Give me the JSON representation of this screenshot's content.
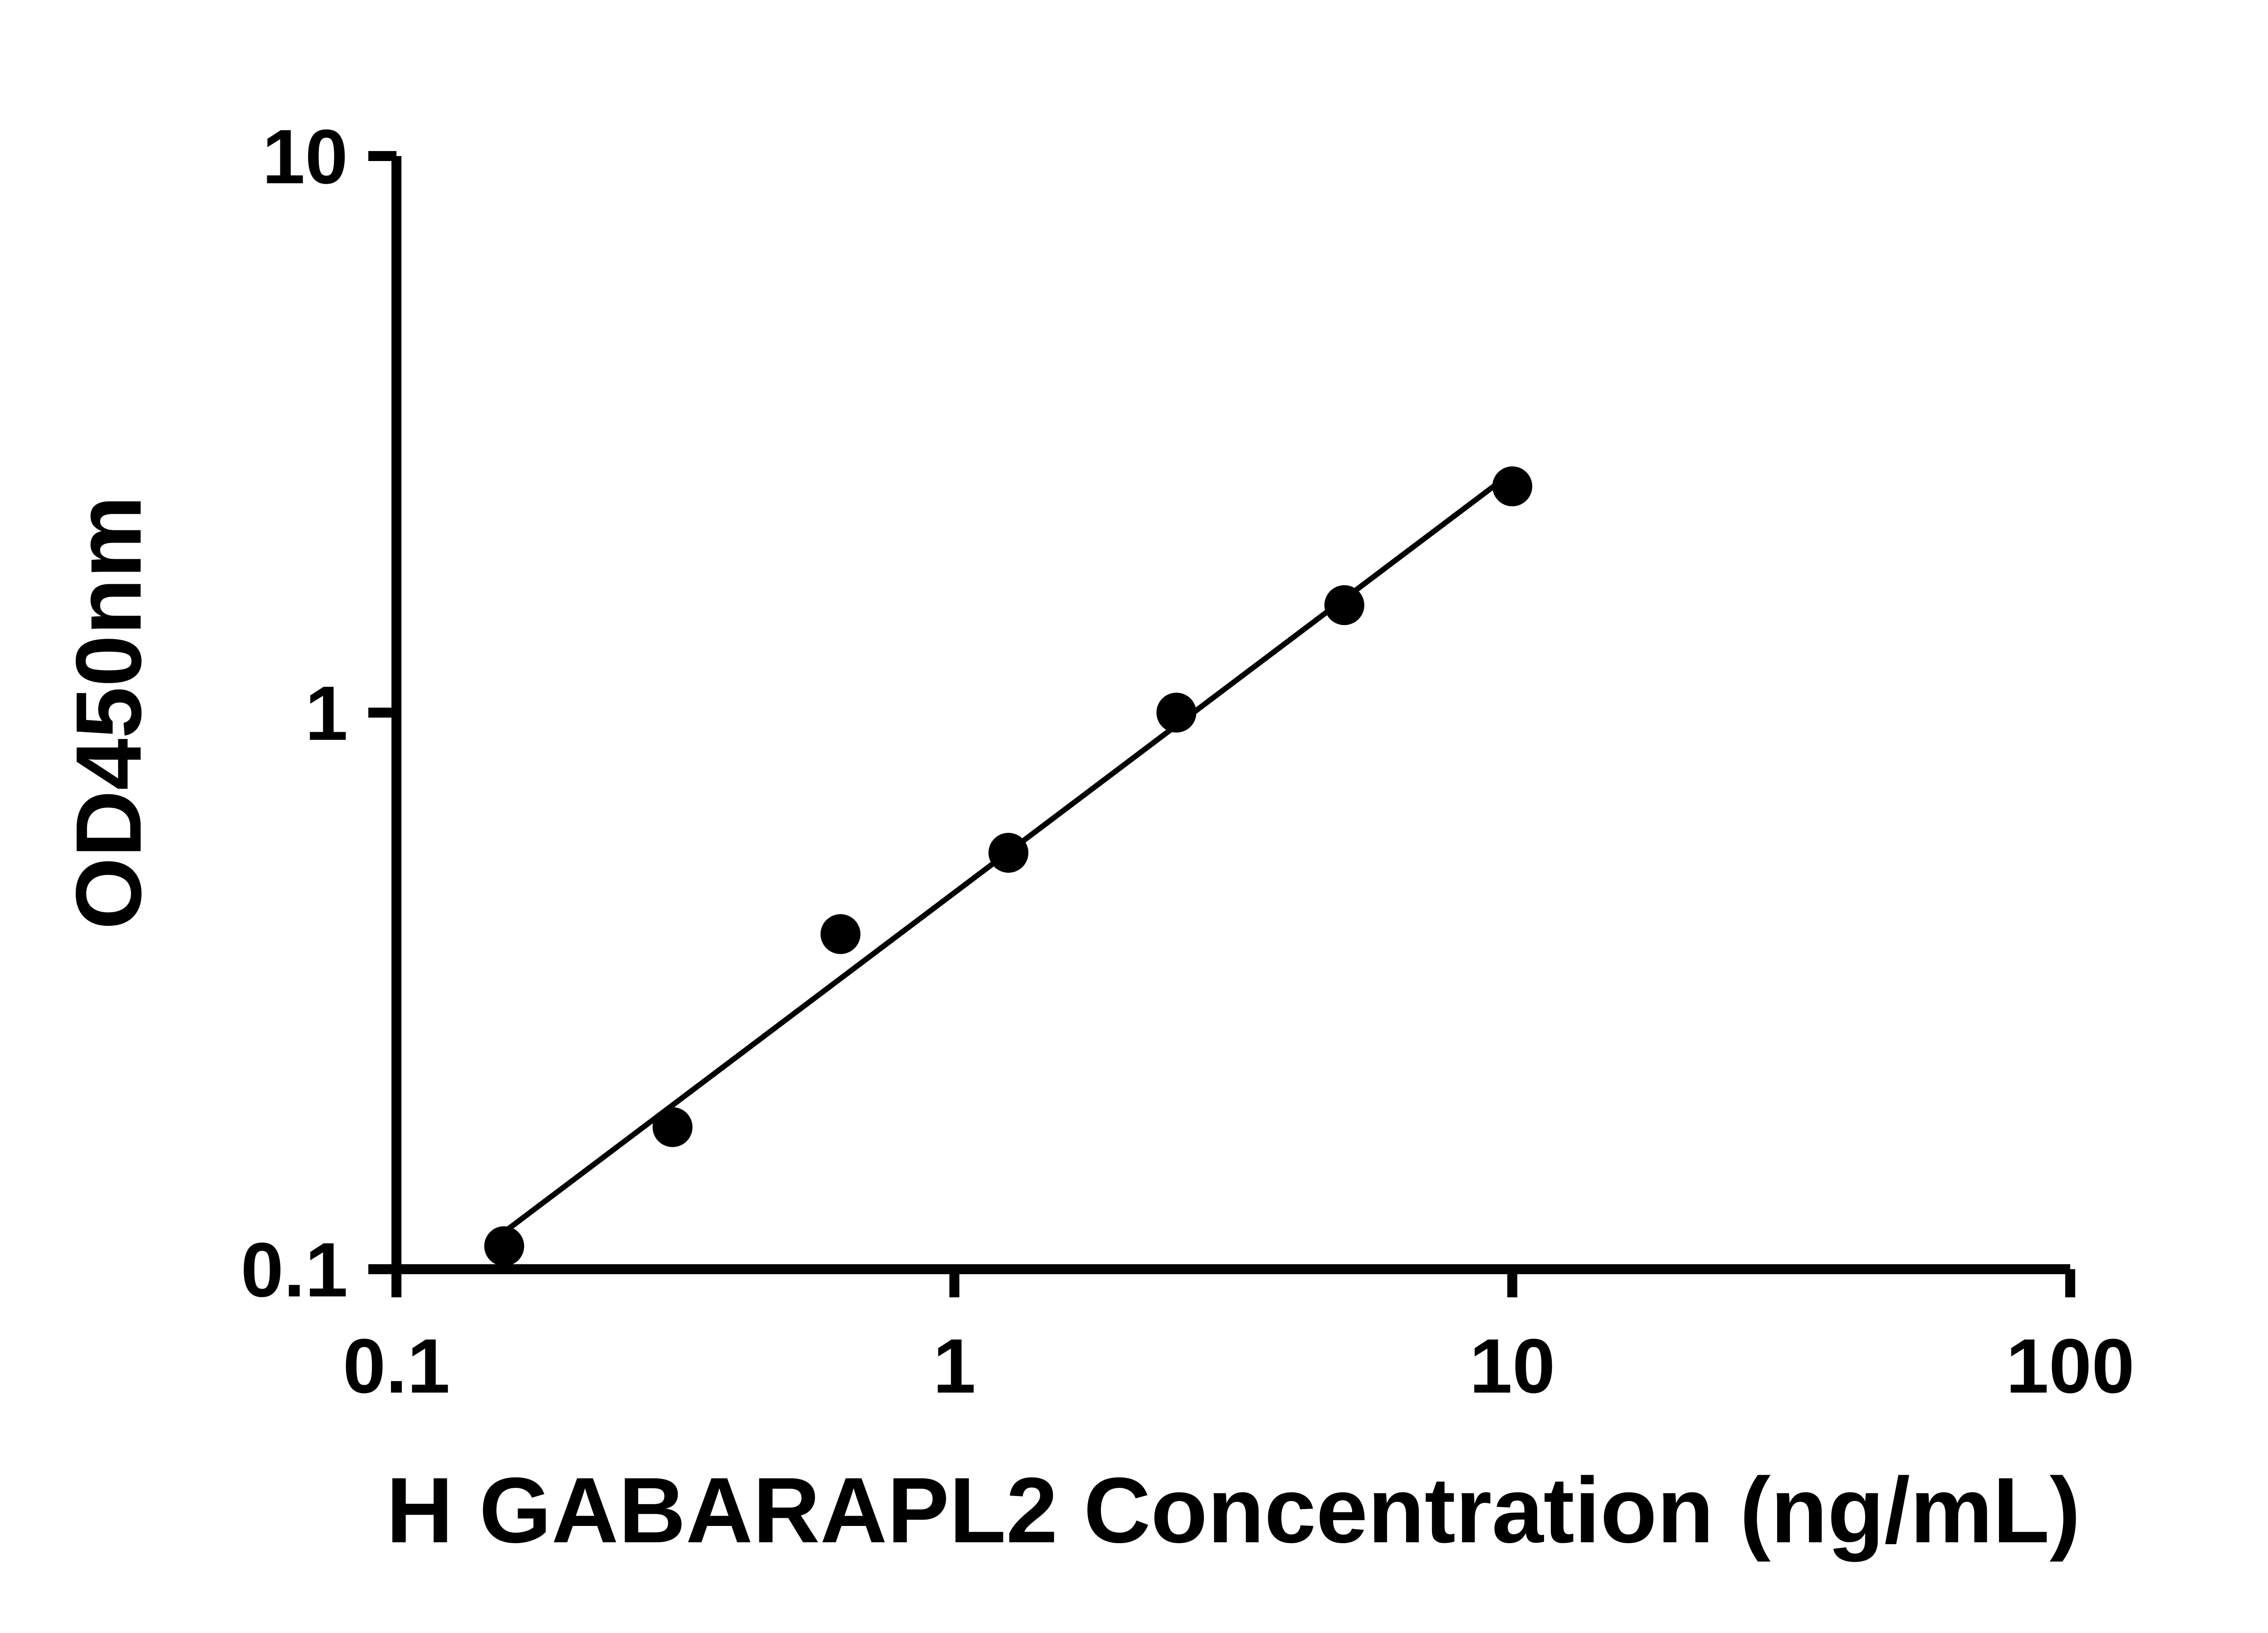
{
  "page": {
    "background": "#ffffff"
  },
  "chart_data": {
    "type": "scatter",
    "title": "",
    "xlabel": "H GABARAPL2 Concentration (ng/mL)",
    "ylabel": "OD450nm",
    "xscale": "log",
    "yscale": "log",
    "xlim": [
      0.1,
      100
    ],
    "ylim": [
      0.1,
      10
    ],
    "x_ticks": [
      "0.1",
      "1",
      "10",
      "100"
    ],
    "y_ticks": [
      "0.1",
      "1",
      "10"
    ],
    "grid": false,
    "legend": false,
    "marker_color": "#000000",
    "axis_color": "#000000",
    "trendline_color": "#000000",
    "x": [
      0.156,
      0.3125,
      0.625,
      1.25,
      2.5,
      5,
      10
    ],
    "y": [
      0.11,
      0.18,
      0.4,
      0.56,
      1.0,
      1.56,
      2.55
    ],
    "trendline": {
      "fit": "linear-loglog",
      "x_start": 0.156,
      "x_end": 10
    }
  }
}
